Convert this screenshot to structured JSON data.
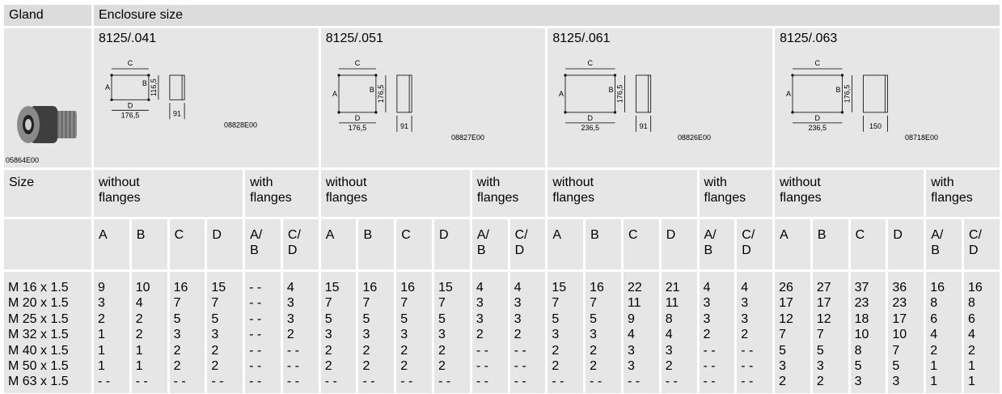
{
  "header": {
    "gland": "Gland",
    "enclosure_size": "Enclosure size"
  },
  "gland_image_code": "05864E00",
  "size_label": "Size",
  "enclosures": [
    {
      "name": "8125/.041",
      "without_flanges": "without flanges",
      "with_flanges": "with flanges",
      "columns": [
        "A",
        "B",
        "C",
        "D",
        "A/ B",
        "C/ D"
      ],
      "drawing": {
        "c": "C",
        "a": "A",
        "b": "B",
        "height": "116,5",
        "d": "D",
        "width": "176,5",
        "depth": "91",
        "code": "08828E00"
      }
    },
    {
      "name": "8125/.051",
      "without_flanges": "without flanges",
      "with_flanges": "with flanges",
      "columns": [
        "A",
        "B",
        "C",
        "D",
        "A/ B",
        "C/ D"
      ],
      "drawing": {
        "c": "C",
        "a": "A",
        "b": "B",
        "height": "176,5",
        "d": "D",
        "width": "176,5",
        "depth": "91",
        "code": "08827E00"
      }
    },
    {
      "name": "8125/.061",
      "without_flanges": "without flanges",
      "with_flanges": "with flanges",
      "columns": [
        "A",
        "B",
        "C",
        "D",
        "A/ B",
        "C/ D"
      ],
      "drawing": {
        "c": "C",
        "a": "A",
        "b": "B",
        "height": "176,5",
        "d": "D",
        "width": "236,5",
        "depth": "91",
        "code": "08826E00"
      }
    },
    {
      "name": "8125/.063",
      "without_flanges": "without flanges",
      "with_flanges": "with flanges",
      "columns": [
        "A",
        "B",
        "C",
        "D",
        "A/ B",
        "C/ D"
      ],
      "drawing": {
        "c": "C",
        "a": "A",
        "b": "B",
        "height": "176,5",
        "d": "D",
        "width": "236,5",
        "depth": "150",
        "code": "08718E00"
      }
    }
  ],
  "rows": [
    {
      "size": "M 16 x 1.5",
      "values": [
        9,
        10,
        16,
        15,
        "- -",
        4,
        15,
        16,
        16,
        15,
        4,
        4,
        15,
        16,
        22,
        21,
        4,
        4,
        26,
        27,
        37,
        36,
        16,
        16
      ]
    },
    {
      "size": "M 20 x 1.5",
      "values": [
        3,
        4,
        7,
        7,
        "- -",
        3,
        7,
        7,
        7,
        7,
        3,
        3,
        7,
        7,
        11,
        11,
        3,
        3,
        17,
        17,
        23,
        23,
        8,
        8
      ]
    },
    {
      "size": "M 25 x 1.5",
      "values": [
        2,
        2,
        5,
        5,
        "- -",
        3,
        5,
        5,
        5,
        5,
        3,
        3,
        5,
        5,
        9,
        8,
        3,
        3,
        12,
        12,
        18,
        17,
        6,
        6
      ]
    },
    {
      "size": "M 32 x 1.5",
      "values": [
        1,
        2,
        3,
        3,
        "- -",
        2,
        3,
        3,
        3,
        3,
        2,
        2,
        3,
        3,
        4,
        4,
        2,
        2,
        7,
        7,
        10,
        10,
        4,
        4
      ]
    },
    {
      "size": "M 40 x 1.5",
      "values": [
        1,
        1,
        2,
        2,
        "- -",
        "- -",
        2,
        2,
        2,
        2,
        "- -",
        "- -",
        2,
        2,
        3,
        3,
        "- -",
        "- -",
        5,
        5,
        8,
        7,
        2,
        2
      ]
    },
    {
      "size": "M 50 x 1.5",
      "values": [
        1,
        1,
        2,
        2,
        "- -",
        "- -",
        2,
        2,
        2,
        2,
        "- -",
        "- -",
        2,
        2,
        3,
        2,
        "- -",
        "- -",
        3,
        3,
        5,
        5,
        1,
        1
      ]
    },
    {
      "size": "M 63 x 1.5",
      "values": [
        "- -",
        "- -",
        "- -",
        "- -",
        "- -",
        "- -",
        "- -",
        "- -",
        "- -",
        "- -",
        "- -",
        "- -",
        "- -",
        "- -",
        "- -",
        "- -",
        "- -",
        "- -",
        2,
        2,
        3,
        3,
        1,
        1
      ]
    }
  ]
}
